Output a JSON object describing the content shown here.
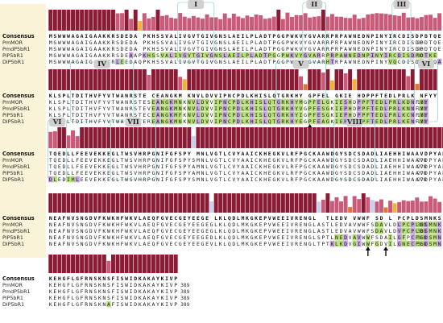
{
  "labels": {
    "consensus": "Consensus",
    "sequences": [
      "PmMOR",
      "PmdP5bR1",
      "PiP5bR1",
      "DiP5bR1"
    ]
  },
  "colors": {
    "panel": "#fbf3d7",
    "bar_high": "#8a1b35",
    "bar_mid": "#c95a7a",
    "bar_orange": "#e5752e",
    "bar_yellow": "#efb33a",
    "bar_light": "#c8d2ef",
    "mismatch_green": "#b9e07a",
    "mismatch_purple": "#c8a4e6",
    "region_bg": "#cfcfcf",
    "outline_cyan": "#62c6c2"
  },
  "blocks": [
    {
      "seq_width": 75,
      "consensus": "MSWWWAGAIGAAKKRSDEDA PKHSSVALIVGVTGIVGNSLAEILPLADTPGGPWKVYGVARRPRPAWNEDNPINYIRCDISDPDTQE",
      "rows": [
        "MSWWWAGAIGAAKKRSDEDA PKHSSVALIVGVTGIVGNSLAEILPLADTPGGPWKVYGVARRPRPAWNEDNPINYIRCDISDPDTQE",
        "MSWWWAGAIGAAKKRSDEDA PKHSSVALIVGVTGIVGNSLAEILPLADTPGGPWKVYGVARRPRPAWNEDNPINYIRCDISDPDTQE",
        "MSWWWAGAIGAAKKRSDEAAPKHSSVALIVGVTGIVGNSLAEILPLADTPGGPWKVYGVARRPRPAWNEDNPINYIRCDISDPDTKE",
        "MSWWWAGAIGAAKKRLEEDAQPKHSSVALIVGVTGIVGNSLAEILPLADTPGGPWKVYGVARHTRPAWNEDNPINYVQCDISDQDSQA"
      ],
      "numbers": [
        "90",
        "90",
        "90",
        "90"
      ]
    },
    {
      "seq_width": 76,
      "consensus": "KLSPLTDITHVFYVTWANRSTE CEANGKM KNVLDVVIPNCPDLKHISLQTGRKHY GPFEL GKIE HDPPFTEDLPRLK NFYY",
      "rows": [
        "KLSPLTDITHVFYVTWANRSTESEANGKMNKNVLDVVIPNCPDLKHISLQTGRKHYMGPFELGKIESHDPPFTEDLPRLKDNFYY",
        "KLSPLTDITHVFYVTWANRSTEVEANGKMNKNVLDVVIPNCPDLKHISLQTGRKHYVGPFESGKIEPHDPPFTEDLPRLKNNFYY",
        "KLSPLTDITHVFYVTWANRSTECEANGKMFKNVLDVVIPNCPDLKHISLQTGRKHYIGPFESGKIEPHDPPFTEDLPRLKCNFYY",
        "KLSPLTDITHVFYVTWANRSTEREANGKMNKNVLDVVIPNCPDLKHISLQTGRKHYEGPFEAGKIEPHDPPFTEDLPRLKENFYY"
      ],
      "numbers": [
        "180",
        "180",
        "180",
        "180"
      ]
    },
    {
      "seq_width": 79,
      "consensus": "TQEDLLFEEVEKKEGLTWSVHRPGNIFGFSPY MNLVGTLCVYAAICKHEGKVLRFPGCKAAWDGYSDCSDADLIAEHHIWAAVDPYAK",
      "rows": [
        "TQEDLLFEEVEKKEGLTWSVHRPGNIFGFSPYSMNLVGTLCVYAAICKHEGKVLRFPGCKAAWDGYSDCSDADLIAEHHIWAAVDPYAK",
        "TQEDLLFEEVEKKEGLTWSVHRPGNIFGFSPYAMNLVGTLCVYAAICKHEGKVLRFPGCKAAWDGYSDCSDADLIAEHHIWAAVDPYAK",
        "TQEDLLFEEVEKKEGLTWSVHRPGNIFGFSPYAMNLVGTLCVYAAICKHEGKVLRFPGCKAAWDGYSDCSDADLIAEHHIWAAVDPYAK",
        "DLEDIMLEEVEKKEGLTWSVHRPGNIFGFSPYSMNLVGTLCVYAAICKHEGKVLRFPGCKAAWDGYSDCSDADLIAEHHIWAAVDPYAK"
      ],
      "numbers": [
        "270",
        "270",
        "270",
        "270"
      ]
    },
    {
      "seq_width": 79,
      "consensus": "NEAFNVSNGDVFKWKHFWKVLAEQFGVECGEYEEGE LKLQDLMKGKEPVWEEIVRENGL  TLEDV VWWF SD L PCPLDSMNKS",
      "rows": [
        "NEAFNVSNGDVFKWKHFWKVLAEQFGVECGEYEEGEGLKLQDLMKGKEPVWEEIVRENGLASTLEDVAVWWFSDAVLDLPCPLDSMNKS",
        "NEAFNVSNGDVFKWKHFWKVLAEQFGVECGEYEEGEGLKLQDLMKGKEPVWEEIVRENGLASTLEDVAVWWFSDAVLDVPCPLDSMNKS",
        "NEAFNVSNGDVFKWKHFWKVLAEQFGVECGEYEEGEDLKLQDLMKGKEPVWEEIVRENGLSPTLNEDVAVWWFSDAILGFPCPLDSMNKS",
        "NEAFNVSNGDVFKWKHFWKVLAEQFGVECGEYEEGEVLKLQDLMKGKEPVWEEIVRENGLTPTKLKDVGIWWFGDVILGNECPLDSMNKS"
      ],
      "numbers": [
        "360",
        "360",
        "360",
        "360"
      ]
    },
    {
      "seq_width": 29,
      "consensus": "KEHGFLGFRNSKNSFISWIDKAKAYKIVP",
      "rows": [
        "KEHGFLGFRNSKNSFISWIDKAKAYKIVP",
        "KEHGFLGFRNSKNSFISWIDKAKAYKIVP",
        "KEHGFLGFRNSKNSFISWIDKAKAYKIVP",
        "KEHGFLGFRNSKNAFISWIDKAKAYKIVP"
      ],
      "numbers": [
        "389",
        "389",
        "389",
        "389"
      ]
    }
  ],
  "regions": [
    {
      "label": "I",
      "block": 0,
      "start": 29,
      "end": 36
    },
    {
      "label": "II",
      "block": 0,
      "start": 57,
      "end": 61
    },
    {
      "label": "III",
      "block": 0,
      "start": 77,
      "end": 80
    },
    {
      "label": "IV",
      "block": 1,
      "start": 5,
      "end": 18
    },
    {
      "label": "V",
      "block": 1,
      "start": 51,
      "end": 61
    },
    {
      "label": "VI",
      "block": 1,
      "start": 82,
      "end": 86
    },
    {
      "label": "VI",
      "block": 2,
      "start": 0,
      "end": 3
    },
    {
      "label": "VII",
      "block": 2,
      "start": 14,
      "end": 23
    },
    {
      "label": "VIII",
      "block": 2,
      "start": 64,
      "end": 72
    }
  ],
  "arrows": [
    {
      "block": 1,
      "col": 58
    },
    {
      "block": 3,
      "col": 71
    },
    {
      "block": 3,
      "col": 75
    }
  ]
}
